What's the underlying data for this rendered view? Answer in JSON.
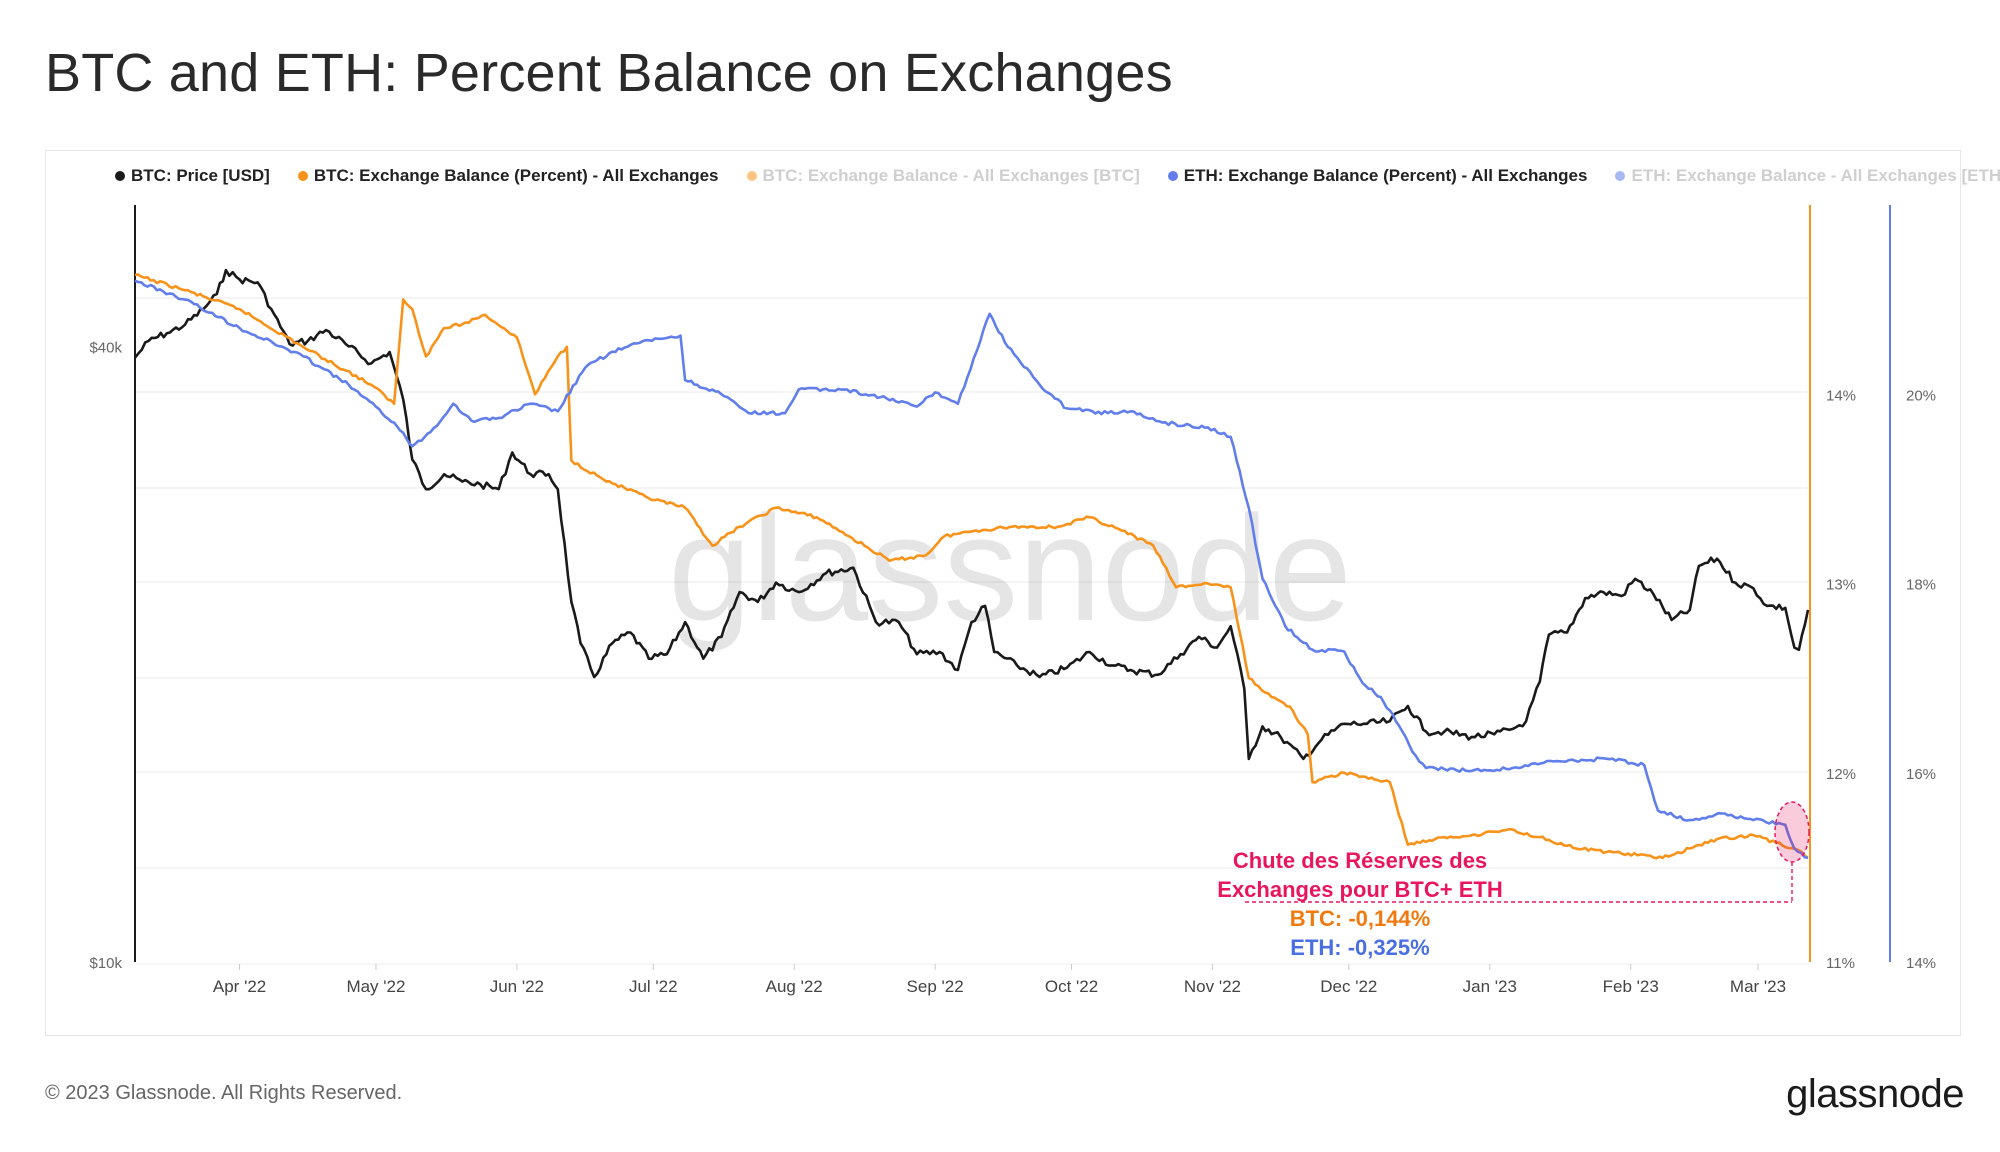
{
  "page": {
    "title": "BTC and ETH: Percent Balance on Exchanges",
    "footer_copyright": "© 2023 Glassnode. All Rights Reserved.",
    "footer_logo": "glassnode",
    "watermark": "glassnode"
  },
  "colors": {
    "btc_price": "#1a1a1a",
    "btc_balance": "#f7931a",
    "eth_balance": "#627eea",
    "annotation": "#e8175d",
    "grid": "#e9e9e9"
  },
  "chart_data": {
    "type": "line",
    "title": "BTC and ETH: Percent Balance on Exchanges",
    "legend": [
      {
        "label": "BTC: Price [USD]",
        "color": "#1a1a1a",
        "active": true
      },
      {
        "label": "BTC: Exchange Balance (Percent) - All Exchanges",
        "color": "#f7931a",
        "active": true
      },
      {
        "label": "BTC: Exchange Balance - All Exchanges [BTC]",
        "color": "#f7931a",
        "active": false
      },
      {
        "label": "ETH: Exchange Balance (Percent) - All Exchanges",
        "color": "#627eea",
        "active": true
      },
      {
        "label": "ETH: Exchange Balance - All Exchanges [ETH]",
        "color": "#627eea",
        "active": false
      }
    ],
    "legend_position": "top",
    "x_axis": {
      "start": "2022-03-09",
      "end": "2023-03-12",
      "ticks": [
        {
          "date": "2022-04-01",
          "label": "Apr '22"
        },
        {
          "date": "2022-05-01",
          "label": "May '22"
        },
        {
          "date": "2022-06-01",
          "label": "Jun '22"
        },
        {
          "date": "2022-07-01",
          "label": "Jul '22"
        },
        {
          "date": "2022-08-01",
          "label": "Aug '22"
        },
        {
          "date": "2022-09-01",
          "label": "Sep '22"
        },
        {
          "date": "2022-10-01",
          "label": "Oct '22"
        },
        {
          "date": "2022-11-01",
          "label": "Nov '22"
        },
        {
          "date": "2022-12-01",
          "label": "Dec '22"
        },
        {
          "date": "2023-01-01",
          "label": "Jan '23"
        },
        {
          "date": "2023-02-01",
          "label": "Feb '23"
        },
        {
          "date": "2023-03-01",
          "label": "Mar '23"
        }
      ]
    },
    "y_axes": {
      "left": {
        "scale": "log",
        "range": [
          10000,
          55000
        ],
        "ticks": [
          {
            "value": 40000,
            "label": "$40k"
          },
          {
            "value": 10000,
            "label": "$10k"
          }
        ]
      },
      "right_btc": {
        "range": [
          11.0,
          15.0
        ],
        "ticks": [
          {
            "value": 14,
            "label": "14%"
          },
          {
            "value": 13,
            "label": "13%"
          },
          {
            "value": 12,
            "label": "12%"
          },
          {
            "value": 11,
            "label": "11%"
          }
        ]
      },
      "right_eth": {
        "range": [
          14.0,
          22.0
        ],
        "ticks": [
          {
            "value": 20,
            "label": "20%"
          },
          {
            "value": 18,
            "label": "18%"
          },
          {
            "value": 16,
            "label": "16%"
          },
          {
            "value": 14,
            "label": "14%"
          }
        ]
      }
    },
    "grid": true,
    "series": [
      {
        "name": "BTC: Price [USD]",
        "axis": "left",
        "color": "#1a1a1a",
        "points": [
          [
            "2022-03-09",
            39000
          ],
          [
            "2022-03-12",
            40500
          ],
          [
            "2022-03-16",
            41200
          ],
          [
            "2022-03-20",
            42000
          ],
          [
            "2022-03-24",
            43500
          ],
          [
            "2022-03-27",
            45000
          ],
          [
            "2022-03-29",
            47500
          ],
          [
            "2022-04-01",
            46500
          ],
          [
            "2022-04-05",
            46200
          ],
          [
            "2022-04-08",
            43500
          ],
          [
            "2022-04-12",
            40200
          ],
          [
            "2022-04-16",
            40500
          ],
          [
            "2022-04-20",
            41500
          ],
          [
            "2022-04-25",
            40000
          ],
          [
            "2022-04-30",
            38500
          ],
          [
            "2022-05-04",
            39500
          ],
          [
            "2022-05-07",
            35500
          ],
          [
            "2022-05-09",
            31000
          ],
          [
            "2022-05-12",
            29000
          ],
          [
            "2022-05-16",
            30000
          ],
          [
            "2022-05-20",
            29500
          ],
          [
            "2022-05-24",
            29300
          ],
          [
            "2022-05-28",
            29000
          ],
          [
            "2022-05-31",
            31500
          ],
          [
            "2022-06-04",
            30000
          ],
          [
            "2022-06-08",
            30000
          ],
          [
            "2022-06-10",
            29000
          ],
          [
            "2022-06-13",
            22500
          ],
          [
            "2022-06-15",
            20500
          ],
          [
            "2022-06-18",
            19000
          ],
          [
            "2022-06-22",
            20500
          ],
          [
            "2022-06-26",
            21000
          ],
          [
            "2022-06-30",
            19800
          ],
          [
            "2022-07-04",
            20000
          ],
          [
            "2022-07-08",
            21500
          ],
          [
            "2022-07-12",
            19800
          ],
          [
            "2022-07-16",
            20800
          ],
          [
            "2022-07-20",
            23000
          ],
          [
            "2022-07-24",
            22500
          ],
          [
            "2022-07-28",
            23500
          ],
          [
            "2022-08-02",
            23000
          ],
          [
            "2022-08-08",
            24000
          ],
          [
            "2022-08-14",
            24300
          ],
          [
            "2022-08-19",
            21500
          ],
          [
            "2022-08-24",
            21500
          ],
          [
            "2022-08-28",
            20000
          ],
          [
            "2022-09-02",
            20100
          ],
          [
            "2022-09-06",
            19300
          ],
          [
            "2022-09-09",
            21500
          ],
          [
            "2022-09-12",
            22300
          ],
          [
            "2022-09-14",
            20100
          ],
          [
            "2022-09-19",
            19500
          ],
          [
            "2022-09-24",
            19000
          ],
          [
            "2022-09-30",
            19400
          ],
          [
            "2022-10-05",
            20100
          ],
          [
            "2022-10-10",
            19500
          ],
          [
            "2022-10-14",
            19300
          ],
          [
            "2022-10-20",
            19100
          ],
          [
            "2022-10-25",
            20000
          ],
          [
            "2022-10-29",
            20800
          ],
          [
            "2022-11-02",
            20300
          ],
          [
            "2022-11-05",
            21300
          ],
          [
            "2022-11-08",
            18500
          ],
          [
            "2022-11-09",
            15800
          ],
          [
            "2022-11-12",
            17000
          ],
          [
            "2022-11-16",
            16600
          ],
          [
            "2022-11-21",
            15800
          ],
          [
            "2022-11-25",
            16500
          ],
          [
            "2022-11-30",
            17100
          ],
          [
            "2022-12-05",
            17100
          ],
          [
            "2022-12-10",
            17200
          ],
          [
            "2022-12-14",
            17800
          ],
          [
            "2022-12-18",
            16800
          ],
          [
            "2022-12-22",
            16800
          ],
          [
            "2022-12-28",
            16600
          ],
          [
            "2023-01-02",
            16700
          ],
          [
            "2023-01-06",
            16900
          ],
          [
            "2023-01-09",
            17200
          ],
          [
            "2023-01-12",
            18800
          ],
          [
            "2023-01-14",
            20900
          ],
          [
            "2023-01-18",
            21000
          ],
          [
            "2023-01-22",
            22700
          ],
          [
            "2023-01-26",
            23000
          ],
          [
            "2023-01-30",
            22800
          ],
          [
            "2023-02-02",
            23700
          ],
          [
            "2023-02-06",
            22900
          ],
          [
            "2023-02-10",
            21600
          ],
          [
            "2023-02-14",
            22100
          ],
          [
            "2023-02-16",
            24400
          ],
          [
            "2023-02-20",
            24800
          ],
          [
            "2023-02-24",
            23500
          ],
          [
            "2023-02-28",
            23200
          ],
          [
            "2023-03-03",
            22300
          ],
          [
            "2023-03-07",
            22200
          ],
          [
            "2023-03-09",
            20300
          ],
          [
            "2023-03-10",
            20200
          ],
          [
            "2023-03-12",
            22100
          ]
        ]
      },
      {
        "name": "BTC: Exchange Balance (Percent) - All Exchanges",
        "axis": "right_btc",
        "color": "#f7931a",
        "points": [
          [
            "2022-03-09",
            14.63
          ],
          [
            "2022-03-20",
            14.55
          ],
          [
            "2022-04-01",
            14.45
          ],
          [
            "2022-04-15",
            14.25
          ],
          [
            "2022-04-30",
            14.05
          ],
          [
            "2022-05-05",
            13.95
          ],
          [
            "2022-05-07",
            14.5
          ],
          [
            "2022-05-09",
            14.45
          ],
          [
            "2022-05-12",
            14.2
          ],
          [
            "2022-05-16",
            14.35
          ],
          [
            "2022-05-20",
            14.37
          ],
          [
            "2022-05-25",
            14.42
          ],
          [
            "2022-06-01",
            14.3
          ],
          [
            "2022-06-05",
            14.0
          ],
          [
            "2022-06-10",
            14.2
          ],
          [
            "2022-06-12",
            14.25
          ],
          [
            "2022-06-13",
            13.65
          ],
          [
            "2022-06-20",
            13.55
          ],
          [
            "2022-06-30",
            13.45
          ],
          [
            "2022-07-08",
            13.4
          ],
          [
            "2022-07-14",
            13.2
          ],
          [
            "2022-07-20",
            13.3
          ],
          [
            "2022-07-28",
            13.4
          ],
          [
            "2022-08-06",
            13.35
          ],
          [
            "2022-08-13",
            13.25
          ],
          [
            "2022-08-22",
            13.12
          ],
          [
            "2022-08-30",
            13.15
          ],
          [
            "2022-09-03",
            13.25
          ],
          [
            "2022-09-10",
            13.28
          ],
          [
            "2022-09-18",
            13.3
          ],
          [
            "2022-09-28",
            13.3
          ],
          [
            "2022-10-05",
            13.35
          ],
          [
            "2022-10-12",
            13.28
          ],
          [
            "2022-10-19",
            13.2
          ],
          [
            "2022-10-24",
            12.98
          ],
          [
            "2022-10-31",
            13.0
          ],
          [
            "2022-11-05",
            12.98
          ],
          [
            "2022-11-09",
            12.5
          ],
          [
            "2022-11-14",
            12.4
          ],
          [
            "2022-11-18",
            12.35
          ],
          [
            "2022-11-22",
            12.2
          ],
          [
            "2022-11-23",
            11.95
          ],
          [
            "2022-11-30",
            12.0
          ],
          [
            "2022-12-04",
            11.98
          ],
          [
            "2022-12-10",
            11.95
          ],
          [
            "2022-12-14",
            11.62
          ],
          [
            "2022-12-20",
            11.65
          ],
          [
            "2022-12-28",
            11.67
          ],
          [
            "2023-01-05",
            11.7
          ],
          [
            "2023-01-12",
            11.66
          ],
          [
            "2023-01-20",
            11.6
          ],
          [
            "2023-01-28",
            11.58
          ],
          [
            "2023-02-08",
            11.55
          ],
          [
            "2023-02-14",
            11.6
          ],
          [
            "2023-02-20",
            11.65
          ],
          [
            "2023-02-28",
            11.67
          ],
          [
            "2023-03-05",
            11.63
          ],
          [
            "2023-03-09",
            11.6
          ],
          [
            "2023-03-12",
            11.55
          ]
        ]
      },
      {
        "name": "ETH: Exchange Balance (Percent) - All Exchanges",
        "axis": "right_eth",
        "color": "#627eea",
        "points": [
          [
            "2022-03-09",
            21.2
          ],
          [
            "2022-03-20",
            21.0
          ],
          [
            "2022-04-01",
            20.7
          ],
          [
            "2022-04-15",
            20.4
          ],
          [
            "2022-04-25",
            20.1
          ],
          [
            "2022-05-05",
            19.7
          ],
          [
            "2022-05-09",
            19.45
          ],
          [
            "2022-05-13",
            19.6
          ],
          [
            "2022-05-18",
            19.9
          ],
          [
            "2022-05-22",
            19.72
          ],
          [
            "2022-05-28",
            19.75
          ],
          [
            "2022-06-04",
            19.9
          ],
          [
            "2022-06-10",
            19.82
          ],
          [
            "2022-06-16",
            20.28
          ],
          [
            "2022-06-22",
            20.45
          ],
          [
            "2022-06-30",
            20.57
          ],
          [
            "2022-07-07",
            20.62
          ],
          [
            "2022-07-08",
            20.15
          ],
          [
            "2022-07-16",
            20.0
          ],
          [
            "2022-07-22",
            19.8
          ],
          [
            "2022-07-30",
            19.8
          ],
          [
            "2022-08-02",
            20.05
          ],
          [
            "2022-08-12",
            20.05
          ],
          [
            "2022-08-20",
            19.97
          ],
          [
            "2022-08-28",
            19.87
          ],
          [
            "2022-09-01",
            20.02
          ],
          [
            "2022-09-06",
            19.9
          ],
          [
            "2022-09-13",
            20.85
          ],
          [
            "2022-09-17",
            20.5
          ],
          [
            "2022-09-24",
            20.1
          ],
          [
            "2022-09-30",
            19.85
          ],
          [
            "2022-10-09",
            19.8
          ],
          [
            "2022-10-14",
            19.82
          ],
          [
            "2022-10-21",
            19.7
          ],
          [
            "2022-10-31",
            19.65
          ],
          [
            "2022-11-05",
            19.55
          ],
          [
            "2022-11-09",
            18.8
          ],
          [
            "2022-11-12",
            18.05
          ],
          [
            "2022-11-17",
            17.55
          ],
          [
            "2022-11-23",
            17.3
          ],
          [
            "2022-11-30",
            17.28
          ],
          [
            "2022-12-04",
            16.95
          ],
          [
            "2022-12-08",
            16.8
          ],
          [
            "2022-12-12",
            16.5
          ],
          [
            "2022-12-15",
            16.22
          ],
          [
            "2022-12-18",
            16.05
          ],
          [
            "2022-12-28",
            16.02
          ],
          [
            "2023-01-06",
            16.05
          ],
          [
            "2023-01-15",
            16.12
          ],
          [
            "2023-01-28",
            16.15
          ],
          [
            "2023-02-04",
            16.08
          ],
          [
            "2023-02-07",
            15.6
          ],
          [
            "2023-02-14",
            15.5
          ],
          [
            "2023-02-21",
            15.57
          ],
          [
            "2023-02-28",
            15.5
          ],
          [
            "2023-03-07",
            15.45
          ],
          [
            "2023-03-09",
            15.2
          ],
          [
            "2023-03-12",
            15.1
          ]
        ]
      }
    ],
    "annotations": [
      {
        "text": "Chute des Réserves des",
        "color": "#e8175d"
      },
      {
        "text": "Exchanges pour BTC+ ETH",
        "color": "#e8175d"
      },
      {
        "text": "BTC: -0,144%",
        "color": "#f07a10"
      },
      {
        "text": "ETH: -0,325%",
        "color": "#4a6fe0"
      }
    ]
  }
}
